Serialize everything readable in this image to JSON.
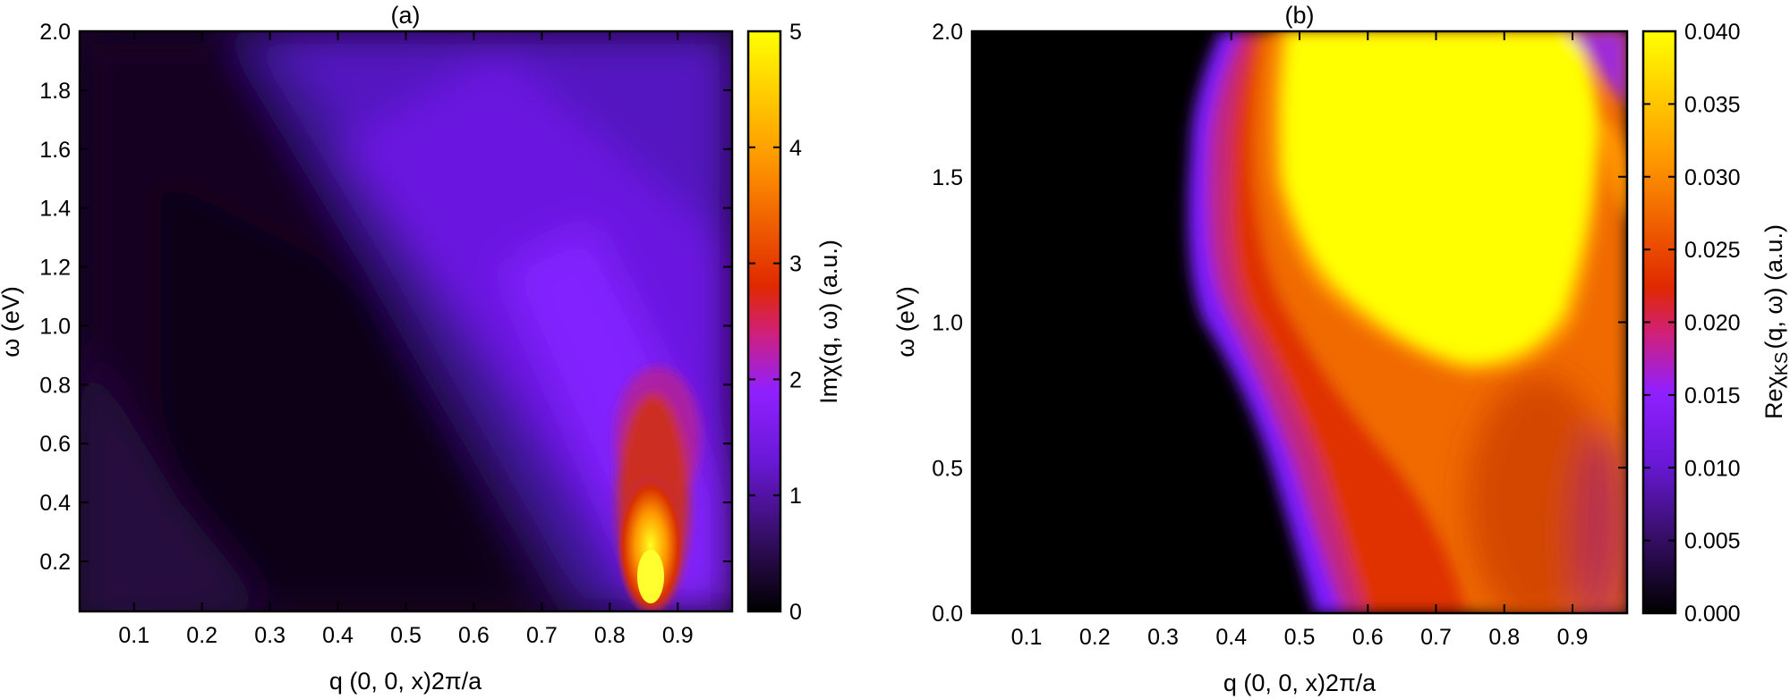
{
  "chart_data": [
    {
      "type": "heatmap",
      "title": "(a)",
      "xlabel": "q (0, 0, x)2π/a",
      "ylabel": "ω (eV)",
      "colorbar_label": "Imχ(q, ω) (a.u.)",
      "xlim": [
        0.02,
        0.98
      ],
      "ylim": [
        0.03,
        2.0
      ],
      "clim": [
        0,
        5
      ],
      "xticks": [
        "0.1",
        "0.2",
        "0.3",
        "0.4",
        "0.5",
        "0.6",
        "0.7",
        "0.8",
        "0.9"
      ],
      "yticks": [
        "0.2",
        "0.4",
        "0.6",
        "0.8",
        "1.0",
        "1.2",
        "1.4",
        "1.6",
        "1.8",
        "2.0"
      ],
      "cticks": [
        "0",
        "1",
        "2",
        "3",
        "4",
        "5"
      ],
      "colormap": [
        "#000000",
        "#3a0f6e",
        "#6a18d8",
        "#9020ff",
        "#d0207a",
        "#e02800",
        "#ff9800",
        "#ffff00"
      ],
      "features": [
        {
          "q": 0.86,
          "omega": 0.12,
          "value": 5.0
        },
        {
          "q": 0.85,
          "omega": 0.45,
          "value": 3.0
        },
        {
          "q": 0.65,
          "omega": 1.0,
          "value": 1.3
        },
        {
          "q": 0.15,
          "omega": 0.3,
          "value": 0.0
        }
      ]
    },
    {
      "type": "heatmap",
      "title": "(b)",
      "xlabel": "q (0, 0, x)2π/a",
      "ylabel": "ω (eV)",
      "colorbar_label": "Reχ",
      "colorbar_label_sub": "KS",
      "colorbar_label_tail": "(q, ω) (a.u.)",
      "xlim": [
        0.02,
        0.98
      ],
      "ylim": [
        0.0,
        2.0
      ],
      "clim": [
        0.0,
        0.04
      ],
      "xticks": [
        "0.1",
        "0.2",
        "0.3",
        "0.4",
        "0.5",
        "0.6",
        "0.7",
        "0.8",
        "0.9"
      ],
      "yticks": [
        "0.0",
        "0.5",
        "1.0",
        "1.5",
        "2.0"
      ],
      "cticks": [
        "0.000",
        "0.005",
        "0.010",
        "0.015",
        "0.020",
        "0.025",
        "0.030",
        "0.035",
        "0.040"
      ],
      "colormap": [
        "#000000",
        "#3a0f6e",
        "#6a18d8",
        "#9020ff",
        "#d0207a",
        "#e02800",
        "#ff9800",
        "#ffff00"
      ],
      "boundary": [
        [
          0.53,
          0.0
        ],
        [
          0.45,
          0.3
        ],
        [
          0.38,
          0.7
        ],
        [
          0.33,
          1.2
        ],
        [
          0.37,
          1.6
        ],
        [
          0.43,
          2.0
        ]
      ],
      "saturated_region": {
        "q": [
          0.55,
          0.95
        ],
        "omega": [
          0.85,
          2.0
        ],
        "value": 0.04
      }
    }
  ]
}
